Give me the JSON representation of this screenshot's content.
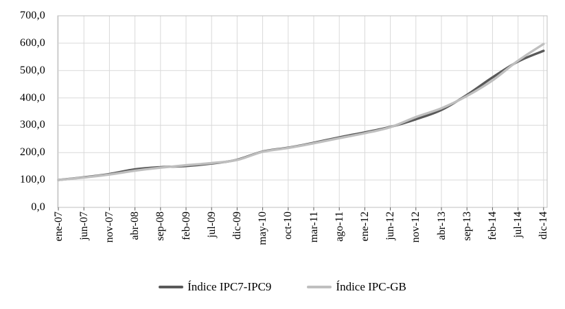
{
  "chart_data": {
    "type": "line",
    "title": "",
    "x_tick_labels": [
      "ene-07",
      "jun-07",
      "nov-07",
      "abr-08",
      "sep-08",
      "feb-09",
      "jul-09",
      "dic-09",
      "may-10",
      "oct-10",
      "mar-11",
      "ago-11",
      "ene-12",
      "jun-12",
      "nov-12",
      "abr-13",
      "sep-13",
      "feb-14",
      "jul-14",
      "dic-14"
    ],
    "y_tick_labels": [
      "0,0",
      "100,0",
      "200,0",
      "300,0",
      "400,0",
      "500,0",
      "600,0",
      "700,0"
    ],
    "ylim": [
      0,
      700
    ],
    "y_step": 100,
    "grid": "both",
    "legend_position": "bottom",
    "series": [
      {
        "name": "Índice IPC7-IPC9",
        "color": "#595959",
        "values": [
          100,
          110,
          122,
          139,
          147,
          151,
          160,
          174,
          204,
          218,
          236,
          256,
          274,
          294,
          322,
          356,
          411,
          475,
          533,
          572
        ]
      },
      {
        "name": "Índice IPC-GB",
        "color": "#bfbfbf",
        "values": [
          100,
          109,
          120,
          134,
          145,
          154,
          162,
          173,
          203,
          217,
          234,
          253,
          271,
          293,
          330,
          362,
          407,
          464,
          536,
          597
        ]
      }
    ],
    "colors": {
      "gridline": "#d9d9d9",
      "plot_border": "#bfbfbf",
      "tick_mark": "#595959",
      "text": "#000000",
      "background": "#ffffff"
    }
  }
}
